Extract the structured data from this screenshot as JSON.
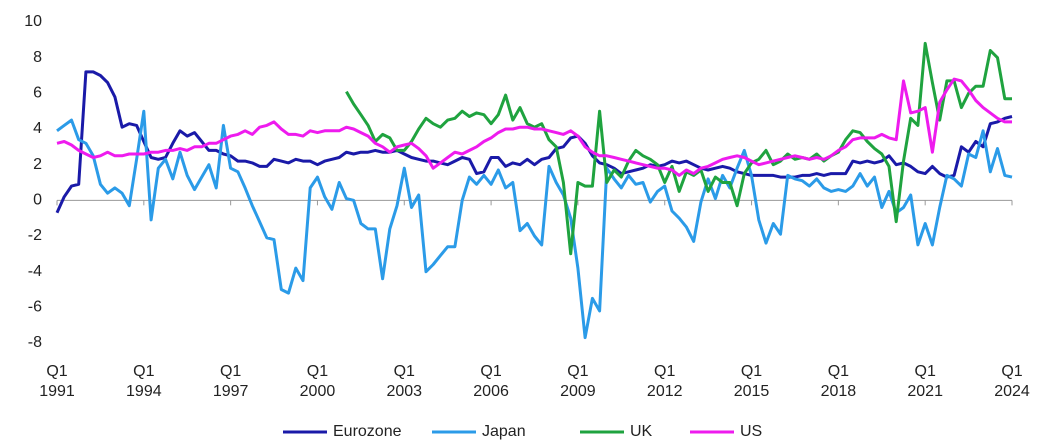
{
  "chart_data": {
    "type": "line",
    "categories": [
      "Q1 1991",
      null,
      null,
      null,
      null,
      null,
      null,
      null,
      null,
      null,
      null,
      null,
      "Q1 1994",
      null,
      null,
      null,
      null,
      null,
      null,
      null,
      null,
      null,
      null,
      null,
      "Q1 1997",
      null,
      null,
      null,
      null,
      null,
      null,
      null,
      null,
      null,
      null,
      null,
      "Q1 2000",
      null,
      null,
      null,
      null,
      null,
      null,
      null,
      null,
      null,
      null,
      null,
      "Q1 2003",
      null,
      null,
      null,
      null,
      null,
      null,
      null,
      null,
      null,
      null,
      null,
      "Q1 2006",
      null,
      null,
      null,
      null,
      null,
      null,
      null,
      null,
      null,
      null,
      null,
      "Q1 2009",
      null,
      null,
      null,
      null,
      null,
      null,
      null,
      null,
      null,
      null,
      null,
      "Q1 2012",
      null,
      null,
      null,
      null,
      null,
      null,
      null,
      null,
      null,
      null,
      null,
      "Q1 2015",
      null,
      null,
      null,
      null,
      null,
      null,
      null,
      null,
      null,
      null,
      null,
      "Q1 2018",
      null,
      null,
      null,
      null,
      null,
      null,
      null,
      null,
      null,
      null,
      null,
      "Q1 2021",
      null,
      null,
      null,
      null,
      null,
      null,
      null,
      null,
      null,
      null,
      null,
      "Q1 2024"
    ],
    "series": [
      {
        "name": "Eurozone",
        "color": "#1a1aa8",
        "values": [
          -0.7,
          0.2,
          0.8,
          0.9,
          7.2,
          7.2,
          7.0,
          6.6,
          5.8,
          4.1,
          4.3,
          4.2,
          3.3,
          2.4,
          2.3,
          2.4,
          3.2,
          3.9,
          3.6,
          3.8,
          3.3,
          2.8,
          2.8,
          2.6,
          2.5,
          2.2,
          2.2,
          2.1,
          1.9,
          1.9,
          2.3,
          2.2,
          2.1,
          2.3,
          2.2,
          2.2,
          2.0,
          2.2,
          2.3,
          2.4,
          2.7,
          2.6,
          2.7,
          2.7,
          2.8,
          2.7,
          2.7,
          2.8,
          2.6,
          2.4,
          2.3,
          2.2,
          2.2,
          2.1,
          2.0,
          2.2,
          2.4,
          2.3,
          1.5,
          1.6,
          2.4,
          2.4,
          1.9,
          2.1,
          2.0,
          2.3,
          2.0,
          2.3,
          2.4,
          2.9,
          3.0,
          3.5,
          3.6,
          3.2,
          2.5,
          2.1,
          2.0,
          1.8,
          1.5,
          1.6,
          1.7,
          1.8,
          2.0,
          1.9,
          2.0,
          2.2,
          2.1,
          2.2,
          2.0,
          1.8,
          1.7,
          1.8,
          1.9,
          1.8,
          1.6,
          1.5,
          1.4,
          1.4,
          1.4,
          1.4,
          1.3,
          1.3,
          1.3,
          1.4,
          1.4,
          1.5,
          1.4,
          1.5,
          1.5,
          1.5,
          2.2,
          2.1,
          2.2,
          2.1,
          2.2,
          2.5,
          2.0,
          2.1,
          1.9,
          1.6,
          1.5,
          1.9,
          1.5,
          1.3,
          1.4,
          3.0,
          2.7,
          3.3,
          3.0,
          4.3,
          4.4,
          4.6,
          4.7
        ]
      },
      {
        "name": "Japan",
        "color": "#2b9be8",
        "values": [
          3.9,
          4.2,
          4.5,
          3.4,
          3.2,
          2.5,
          0.9,
          0.4,
          0.7,
          0.4,
          -0.3,
          2.3,
          5.0,
          -1.1,
          1.8,
          2.3,
          1.2,
          2.7,
          1.4,
          0.6,
          1.3,
          2.0,
          0.7,
          4.2,
          1.8,
          1.6,
          0.7,
          -0.3,
          -1.2,
          -2.1,
          -2.2,
          -5.0,
          -5.2,
          -3.8,
          -4.5,
          0.7,
          1.3,
          0.2,
          -0.5,
          1.0,
          0.1,
          0.0,
          -1.3,
          -1.6,
          -1.6,
          -4.4,
          -1.6,
          -0.3,
          1.8,
          -0.4,
          0.3,
          -4.0,
          -3.6,
          -3.1,
          -2.6,
          -2.6,
          0.0,
          1.3,
          0.9,
          1.4,
          0.9,
          1.7,
          0.7,
          1.0,
          -1.7,
          -1.3,
          -2.0,
          -2.5,
          1.9,
          1.0,
          0.3,
          -1.0,
          -3.8,
          -7.7,
          -5.5,
          -6.2,
          1.8,
          1.2,
          0.7,
          1.4,
          0.9,
          1.0,
          -0.1,
          0.5,
          0.8,
          -0.6,
          -1.0,
          -1.5,
          -2.3,
          -0.1,
          1.2,
          0.1,
          1.4,
          0.7,
          1.8,
          2.8,
          1.4,
          -1.1,
          -2.4,
          -1.3,
          -1.9,
          1.4,
          1.2,
          1.1,
          0.8,
          1.2,
          0.7,
          0.5,
          0.6,
          0.5,
          0.8,
          1.5,
          0.8,
          1.3,
          -0.4,
          0.5,
          -0.7,
          -0.4,
          0.3,
          -2.5,
          -1.3,
          -2.5,
          -0.4,
          1.4,
          1.2,
          0.8,
          2.6,
          2.4,
          3.9,
          1.6,
          2.9,
          1.4,
          1.3
        ]
      },
      {
        "name": "UK",
        "color": "#1fa33f",
        "values": [
          null,
          null,
          null,
          null,
          null,
          null,
          null,
          null,
          null,
          null,
          null,
          null,
          null,
          null,
          null,
          null,
          null,
          null,
          null,
          null,
          null,
          null,
          null,
          null,
          null,
          null,
          null,
          null,
          null,
          null,
          null,
          null,
          null,
          null,
          null,
          null,
          null,
          null,
          null,
          null,
          6.1,
          5.4,
          4.8,
          4.2,
          3.3,
          3.7,
          3.5,
          2.8,
          2.8,
          3.3,
          4.0,
          4.6,
          4.3,
          4.1,
          4.5,
          4.6,
          5.0,
          4.7,
          4.9,
          4.8,
          4.3,
          4.8,
          5.9,
          4.5,
          5.2,
          4.3,
          4.1,
          4.3,
          3.4,
          3.0,
          1.0,
          -3.0,
          1.0,
          0.8,
          0.8,
          5.0,
          1.0,
          1.7,
          1.3,
          2.2,
          2.8,
          2.5,
          2.3,
          2.0,
          1.0,
          1.9,
          0.5,
          1.6,
          1.4,
          1.7,
          0.5,
          1.3,
          1.0,
          1.0,
          -0.3,
          1.5,
          2.1,
          2.3,
          2.8,
          2.0,
          2.2,
          2.6,
          2.3,
          2.4,
          2.3,
          2.6,
          2.2,
          2.5,
          2.7,
          3.4,
          3.9,
          3.8,
          3.3,
          2.9,
          2.6,
          1.9,
          -1.2,
          2.2,
          4.6,
          4.2,
          8.8,
          6.6,
          4.5,
          6.7,
          6.7,
          5.2,
          6.0,
          6.4,
          6.4,
          8.4,
          8.0,
          5.7,
          5.7
        ]
      },
      {
        "name": "US",
        "color": "#ee1bee",
        "values": [
          3.2,
          3.3,
          3.1,
          2.8,
          2.6,
          2.4,
          2.5,
          2.7,
          2.5,
          2.5,
          2.6,
          2.6,
          2.6,
          2.7,
          2.7,
          2.8,
          2.8,
          2.9,
          2.8,
          3.0,
          3.0,
          3.2,
          3.2,
          3.4,
          3.6,
          3.7,
          3.9,
          3.7,
          4.1,
          4.2,
          4.4,
          4.0,
          3.7,
          3.7,
          3.6,
          3.9,
          3.8,
          3.9,
          3.9,
          3.9,
          4.1,
          4.0,
          3.8,
          3.6,
          3.2,
          3.0,
          2.7,
          3.0,
          3.1,
          3.2,
          2.9,
          2.5,
          1.8,
          2.1,
          2.4,
          2.7,
          2.6,
          2.8,
          3.0,
          3.3,
          3.5,
          3.8,
          4.0,
          4.0,
          4.1,
          4.1,
          4.0,
          4.0,
          3.9,
          3.8,
          3.7,
          3.9,
          3.6,
          3.0,
          2.7,
          2.5,
          2.5,
          2.4,
          2.3,
          2.2,
          2.1,
          2.0,
          1.9,
          1.8,
          1.8,
          1.7,
          1.4,
          1.7,
          1.5,
          1.8,
          1.9,
          2.1,
          2.3,
          2.4,
          2.5,
          2.4,
          2.2,
          2.0,
          2.1,
          2.2,
          2.3,
          2.4,
          2.5,
          2.4,
          2.3,
          2.4,
          2.3,
          2.5,
          2.8,
          3.0,
          3.4,
          3.5,
          3.5,
          3.5,
          3.7,
          3.5,
          3.4,
          6.7,
          4.9,
          5.0,
          5.2,
          2.7,
          5.5,
          6.2,
          6.8,
          6.7,
          6.2,
          5.6,
          5.2,
          4.9,
          4.6,
          4.4,
          4.4
        ]
      }
    ],
    "ylim": [
      -8,
      10
    ],
    "yticks": [
      -8,
      -6,
      -4,
      -2,
      0,
      2,
      4,
      6,
      8,
      10
    ],
    "grid": false
  }
}
